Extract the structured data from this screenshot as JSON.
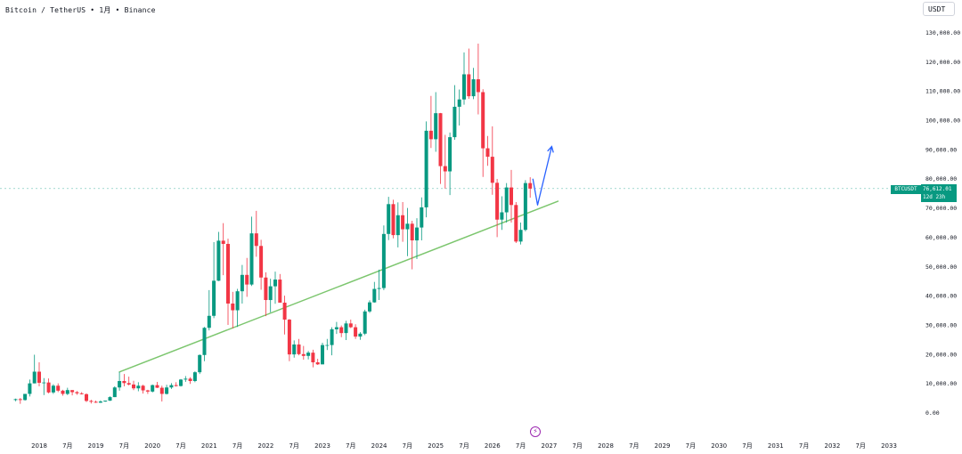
{
  "header": {
    "symbol": "Bitcoin / TetherUS",
    "interval": "1月",
    "exchange": "Binance",
    "separator": "•"
  },
  "currency": "USDT",
  "price_tag": {
    "symbol": "BTCUSDT",
    "price": "76,612.01",
    "countdown": "12d 23h",
    "color": "#089981"
  },
  "events_icon": "lightning-icon",
  "colors": {
    "up": "#089981",
    "down": "#f23645",
    "trendline": "#7cc66e",
    "arrow": "#2962ff",
    "axis_text": "#131722"
  },
  "chart_data": {
    "type": "candlestick",
    "title": "Bitcoin / TetherUS • 1月 • Binance",
    "xlabel": "",
    "ylabel": "",
    "ylim": [
      0,
      130000
    ],
    "y_ticks": [
      "130,000.00",
      "120,000.00",
      "110,000.00",
      "100,000.00",
      "90,000.00",
      "80,000.00",
      "70,000.00",
      "60,000.00",
      "50,000.00",
      "40,000.00",
      "30,000.00",
      "20,000.00",
      "10,000.00",
      "0.00"
    ],
    "y_tick_values": [
      130000,
      120000,
      110000,
      100000,
      90000,
      80000,
      70000,
      60000,
      50000,
      40000,
      30000,
      20000,
      10000,
      0
    ],
    "x_ticks": [
      {
        "label": "2018",
        "date": "2018-01"
      },
      {
        "label": "7月",
        "date": "2018-07"
      },
      {
        "label": "2019",
        "date": "2019-01"
      },
      {
        "label": "7月",
        "date": "2019-07"
      },
      {
        "label": "2020",
        "date": "2020-01"
      },
      {
        "label": "7月",
        "date": "2020-07"
      },
      {
        "label": "2021",
        "date": "2021-01"
      },
      {
        "label": "7月",
        "date": "2021-07"
      },
      {
        "label": "2022",
        "date": "2022-01"
      },
      {
        "label": "7月",
        "date": "2022-07"
      },
      {
        "label": "2023",
        "date": "2023-01"
      },
      {
        "label": "7月",
        "date": "2023-07"
      },
      {
        "label": "2024",
        "date": "2024-01"
      },
      {
        "label": "7月",
        "date": "2024-07"
      },
      {
        "label": "2025",
        "date": "2025-01"
      },
      {
        "label": "7月",
        "date": "2025-07"
      },
      {
        "label": "2026",
        "date": "2026-01"
      },
      {
        "label": "7月",
        "date": "2026-07"
      },
      {
        "label": "2027",
        "date": "2027-01"
      },
      {
        "label": "7月",
        "date": "2027-07"
      },
      {
        "label": "2028",
        "date": "2028-01"
      },
      {
        "label": "7月",
        "date": "2028-07"
      },
      {
        "label": "2029",
        "date": "2029-01"
      },
      {
        "label": "7月",
        "date": "2029-07"
      },
      {
        "label": "2030",
        "date": "2030-01"
      },
      {
        "label": "7月",
        "date": "2030-07"
      },
      {
        "label": "2031",
        "date": "2031-01"
      },
      {
        "label": "7月",
        "date": "2031-07"
      },
      {
        "label": "2032",
        "date": "2032-01"
      },
      {
        "label": "7月",
        "date": "2032-07"
      },
      {
        "label": "2033",
        "date": "2033-01"
      }
    ],
    "current_price": 76612.01,
    "candles": [
      {
        "date": "2017-08",
        "o": 4300,
        "h": 4800,
        "l": 3900,
        "c": 4600
      },
      {
        "date": "2017-09",
        "o": 4600,
        "h": 5000,
        "l": 3000,
        "c": 4300
      },
      {
        "date": "2017-10",
        "o": 4300,
        "h": 6400,
        "l": 4100,
        "c": 6400
      },
      {
        "date": "2017-11",
        "o": 6400,
        "h": 11300,
        "l": 5500,
        "c": 10000
      },
      {
        "date": "2017-12",
        "o": 10000,
        "h": 19800,
        "l": 10000,
        "c": 14000
      },
      {
        "date": "2018-01",
        "o": 14000,
        "h": 17200,
        "l": 9000,
        "c": 10200
      },
      {
        "date": "2018-02",
        "o": 10200,
        "h": 11800,
        "l": 6000,
        "c": 10300
      },
      {
        "date": "2018-03",
        "o": 10300,
        "h": 11700,
        "l": 6600,
        "c": 6900
      },
      {
        "date": "2018-04",
        "o": 6900,
        "h": 9700,
        "l": 6400,
        "c": 9200
      },
      {
        "date": "2018-05",
        "o": 9200,
        "h": 10000,
        "l": 7000,
        "c": 7500
      },
      {
        "date": "2018-06",
        "o": 7500,
        "h": 7800,
        "l": 5800,
        "c": 6400
      },
      {
        "date": "2018-07",
        "o": 6400,
        "h": 8500,
        "l": 6000,
        "c": 7700
      },
      {
        "date": "2018-08",
        "o": 7700,
        "h": 7700,
        "l": 5900,
        "c": 7000
      },
      {
        "date": "2018-09",
        "o": 7000,
        "h": 7400,
        "l": 6100,
        "c": 6600
      },
      {
        "date": "2018-10",
        "o": 6600,
        "h": 7000,
        "l": 6200,
        "c": 6300
      },
      {
        "date": "2018-11",
        "o": 6300,
        "h": 6600,
        "l": 3600,
        "c": 4000
      },
      {
        "date": "2018-12",
        "o": 4000,
        "h": 4400,
        "l": 3100,
        "c": 3700
      },
      {
        "date": "2019-01",
        "o": 3700,
        "h": 4100,
        "l": 3300,
        "c": 3400
      },
      {
        "date": "2019-02",
        "o": 3400,
        "h": 4200,
        "l": 3300,
        "c": 3800
      },
      {
        "date": "2019-03",
        "o": 3800,
        "h": 4100,
        "l": 3700,
        "c": 4100
      },
      {
        "date": "2019-04",
        "o": 4100,
        "h": 5600,
        "l": 4000,
        "c": 5300
      },
      {
        "date": "2019-05",
        "o": 5300,
        "h": 9000,
        "l": 5300,
        "c": 8600
      },
      {
        "date": "2019-06",
        "o": 8600,
        "h": 13900,
        "l": 7500,
        "c": 10800
      },
      {
        "date": "2019-07",
        "o": 10800,
        "h": 13200,
        "l": 9000,
        "c": 10100
      },
      {
        "date": "2019-08",
        "o": 10100,
        "h": 12300,
        "l": 9300,
        "c": 9600
      },
      {
        "date": "2019-09",
        "o": 9600,
        "h": 10900,
        "l": 7700,
        "c": 8300
      },
      {
        "date": "2019-10",
        "o": 8300,
        "h": 10400,
        "l": 7300,
        "c": 9200
      },
      {
        "date": "2019-11",
        "o": 9200,
        "h": 9500,
        "l": 6500,
        "c": 7600
      },
      {
        "date": "2019-12",
        "o": 7600,
        "h": 7800,
        "l": 6400,
        "c": 7200
      },
      {
        "date": "2020-01",
        "o": 7200,
        "h": 9600,
        "l": 6900,
        "c": 9400
      },
      {
        "date": "2020-02",
        "o": 9400,
        "h": 10500,
        "l": 8400,
        "c": 8500
      },
      {
        "date": "2020-03",
        "o": 8500,
        "h": 9200,
        "l": 3800,
        "c": 6400
      },
      {
        "date": "2020-04",
        "o": 6400,
        "h": 9500,
        "l": 6200,
        "c": 8600
      },
      {
        "date": "2020-05",
        "o": 8600,
        "h": 10100,
        "l": 8100,
        "c": 9400
      },
      {
        "date": "2020-06",
        "o": 9400,
        "h": 10400,
        "l": 8900,
        "c": 9100
      },
      {
        "date": "2020-07",
        "o": 9100,
        "h": 11500,
        "l": 8900,
        "c": 11300
      },
      {
        "date": "2020-08",
        "o": 11300,
        "h": 12500,
        "l": 10500,
        "c": 11600
      },
      {
        "date": "2020-09",
        "o": 11600,
        "h": 12100,
        "l": 9800,
        "c": 10800
      },
      {
        "date": "2020-10",
        "o": 10800,
        "h": 14100,
        "l": 10400,
        "c": 13800
      },
      {
        "date": "2020-11",
        "o": 13800,
        "h": 19900,
        "l": 13200,
        "c": 19700
      },
      {
        "date": "2020-12",
        "o": 19700,
        "h": 29300,
        "l": 17600,
        "c": 29000
      },
      {
        "date": "2021-01",
        "o": 29000,
        "h": 41900,
        "l": 28100,
        "c": 33100
      },
      {
        "date": "2021-02",
        "o": 33100,
        "h": 58300,
        "l": 32300,
        "c": 45100
      },
      {
        "date": "2021-03",
        "o": 45100,
        "h": 61800,
        "l": 45000,
        "c": 58800
      },
      {
        "date": "2021-04",
        "o": 58800,
        "h": 64800,
        "l": 47000,
        "c": 57700
      },
      {
        "date": "2021-05",
        "o": 57700,
        "h": 59500,
        "l": 30000,
        "c": 37300
      },
      {
        "date": "2021-06",
        "o": 37300,
        "h": 41300,
        "l": 28800,
        "c": 35000
      },
      {
        "date": "2021-07",
        "o": 35000,
        "h": 42300,
        "l": 29300,
        "c": 41500
      },
      {
        "date": "2021-08",
        "o": 41500,
        "h": 50500,
        "l": 37300,
        "c": 47100
      },
      {
        "date": "2021-09",
        "o": 47100,
        "h": 52900,
        "l": 39600,
        "c": 43800
      },
      {
        "date": "2021-10",
        "o": 43800,
        "h": 67000,
        "l": 43300,
        "c": 61300
      },
      {
        "date": "2021-11",
        "o": 61300,
        "h": 69000,
        "l": 53300,
        "c": 57000
      },
      {
        "date": "2021-12",
        "o": 57000,
        "h": 59100,
        "l": 42000,
        "c": 46200
      },
      {
        "date": "2022-01",
        "o": 46200,
        "h": 48000,
        "l": 33000,
        "c": 38500
      },
      {
        "date": "2022-02",
        "o": 38500,
        "h": 45800,
        "l": 34300,
        "c": 43200
      },
      {
        "date": "2022-03",
        "o": 43200,
        "h": 48200,
        "l": 37200,
        "c": 45500
      },
      {
        "date": "2022-04",
        "o": 45500,
        "h": 47400,
        "l": 37600,
        "c": 37600
      },
      {
        "date": "2022-05",
        "o": 37600,
        "h": 40000,
        "l": 26700,
        "c": 31800
      },
      {
        "date": "2022-06",
        "o": 31800,
        "h": 32000,
        "l": 17600,
        "c": 19900
      },
      {
        "date": "2022-07",
        "o": 19900,
        "h": 24700,
        "l": 18800,
        "c": 23300
      },
      {
        "date": "2022-08",
        "o": 23300,
        "h": 25200,
        "l": 19600,
        "c": 20000
      },
      {
        "date": "2022-09",
        "o": 20000,
        "h": 22800,
        "l": 18100,
        "c": 19400
      },
      {
        "date": "2022-10",
        "o": 19400,
        "h": 21100,
        "l": 18200,
        "c": 20500
      },
      {
        "date": "2022-11",
        "o": 20500,
        "h": 21500,
        "l": 15500,
        "c": 17200
      },
      {
        "date": "2022-12",
        "o": 17200,
        "h": 18400,
        "l": 16300,
        "c": 16500
      },
      {
        "date": "2023-01",
        "o": 16500,
        "h": 23900,
        "l": 16500,
        "c": 23100
      },
      {
        "date": "2023-02",
        "o": 23100,
        "h": 25200,
        "l": 21400,
        "c": 23100
      },
      {
        "date": "2023-03",
        "o": 23100,
        "h": 29200,
        "l": 19600,
        "c": 28500
      },
      {
        "date": "2023-04",
        "o": 28500,
        "h": 31000,
        "l": 26900,
        "c": 29200
      },
      {
        "date": "2023-05",
        "o": 29200,
        "h": 29800,
        "l": 25800,
        "c": 27200
      },
      {
        "date": "2023-06",
        "o": 27200,
        "h": 31400,
        "l": 24800,
        "c": 30500
      },
      {
        "date": "2023-07",
        "o": 30500,
        "h": 31800,
        "l": 28900,
        "c": 29200
      },
      {
        "date": "2023-08",
        "o": 29200,
        "h": 30200,
        "l": 25200,
        "c": 26000
      },
      {
        "date": "2023-09",
        "o": 26000,
        "h": 27500,
        "l": 24900,
        "c": 27000
      },
      {
        "date": "2023-10",
        "o": 27000,
        "h": 35200,
        "l": 26500,
        "c": 34600
      },
      {
        "date": "2023-11",
        "o": 34600,
        "h": 38400,
        "l": 34100,
        "c": 37700
      },
      {
        "date": "2023-12",
        "o": 37700,
        "h": 44700,
        "l": 37600,
        "c": 42300
      },
      {
        "date": "2024-01",
        "o": 42300,
        "h": 48900,
        "l": 38500,
        "c": 42600
      },
      {
        "date": "2024-02",
        "o": 42600,
        "h": 64000,
        "l": 41900,
        "c": 61100
      },
      {
        "date": "2024-03",
        "o": 61100,
        "h": 73800,
        "l": 59000,
        "c": 71300
      },
      {
        "date": "2024-04",
        "o": 71300,
        "h": 72800,
        "l": 59600,
        "c": 60700
      },
      {
        "date": "2024-05",
        "o": 60700,
        "h": 71900,
        "l": 56500,
        "c": 67500
      },
      {
        "date": "2024-06",
        "o": 67500,
        "h": 72000,
        "l": 58400,
        "c": 62700
      },
      {
        "date": "2024-07",
        "o": 62700,
        "h": 70000,
        "l": 53500,
        "c": 64600
      },
      {
        "date": "2024-08",
        "o": 64600,
        "h": 65600,
        "l": 49000,
        "c": 58900
      },
      {
        "date": "2024-09",
        "o": 58900,
        "h": 66500,
        "l": 52500,
        "c": 63300
      },
      {
        "date": "2024-10",
        "o": 63300,
        "h": 73600,
        "l": 58900,
        "c": 70200
      },
      {
        "date": "2024-11",
        "o": 70200,
        "h": 99600,
        "l": 66800,
        "c": 96400
      },
      {
        "date": "2024-12",
        "o": 96400,
        "h": 108300,
        "l": 90500,
        "c": 93500
      },
      {
        "date": "2025-01",
        "o": 93500,
        "h": 109600,
        "l": 89200,
        "c": 102400
      },
      {
        "date": "2025-02",
        "o": 102400,
        "h": 102500,
        "l": 78200,
        "c": 84300
      },
      {
        "date": "2025-03",
        "o": 84300,
        "h": 95000,
        "l": 76600,
        "c": 82500
      },
      {
        "date": "2025-04",
        "o": 82500,
        "h": 95800,
        "l": 74400,
        "c": 94200
      },
      {
        "date": "2025-05",
        "o": 94200,
        "h": 112000,
        "l": 93300,
        "c": 104600
      },
      {
        "date": "2025-06",
        "o": 104600,
        "h": 110500,
        "l": 98200,
        "c": 107100
      },
      {
        "date": "2025-07",
        "o": 107100,
        "h": 123200,
        "l": 105300,
        "c": 115700
      },
      {
        "date": "2025-08",
        "o": 115700,
        "h": 124500,
        "l": 107300,
        "c": 108200
      },
      {
        "date": "2025-09",
        "o": 108200,
        "h": 117900,
        "l": 107200,
        "c": 114000
      },
      {
        "date": "2025-10",
        "o": 114000,
        "h": 126200,
        "l": 102000,
        "c": 109600
      },
      {
        "date": "2025-11",
        "o": 109600,
        "h": 110600,
        "l": 80600,
        "c": 90400
      },
      {
        "date": "2025-12",
        "o": 90400,
        "h": 94600,
        "l": 84400,
        "c": 87500
      },
      {
        "date": "2026-01",
        "o": 87500,
        "h": 97900,
        "l": 74500,
        "c": 78600
      },
      {
        "date": "2026-02",
        "o": 78600,
        "h": 79900,
        "l": 60000,
        "c": 66000
      },
      {
        "date": "2026-03",
        "o": 66000,
        "h": 74000,
        "l": 62500,
        "c": 68500
      },
      {
        "date": "2026-04",
        "o": 68500,
        "h": 78500,
        "l": 65000,
        "c": 77000
      },
      {
        "date": "2026-05",
        "o": 77000,
        "h": 83000,
        "l": 65000,
        "c": 71000
      },
      {
        "date": "2026-06",
        "o": 71000,
        "h": 72000,
        "l": 58000,
        "c": 58500
      },
      {
        "date": "2026-07",
        "o": 58500,
        "h": 65000,
        "l": 57500,
        "c": 62500
      },
      {
        "date": "2026-08",
        "o": 62500,
        "h": 79500,
        "l": 62000,
        "c": 78500
      },
      {
        "date": "2026-09",
        "o": 78500,
        "h": 80500,
        "l": 73500,
        "c": 76612.01
      }
    ],
    "trendline": {
      "from": {
        "date": "2019-06",
        "value": 13900
      },
      "to": {
        "date": "2027-01",
        "value": 72300
      }
    },
    "projection_arrow": [
      {
        "date": "2026-09",
        "value": 80000
      },
      {
        "date": "2026-10",
        "value": 71000
      },
      {
        "date": "2027-01",
        "value": 91000
      }
    ]
  }
}
